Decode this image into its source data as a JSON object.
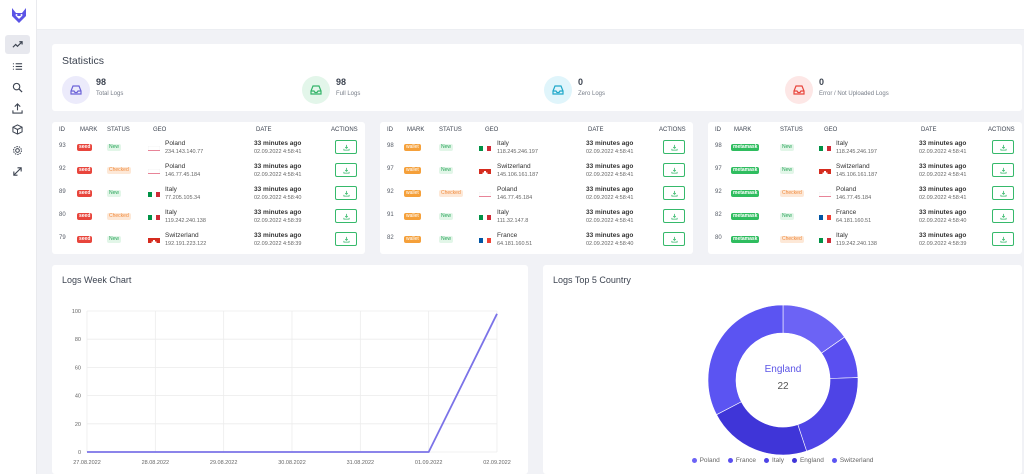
{
  "stats": {
    "title": "Statistics",
    "items": [
      {
        "value": "98",
        "label": "Total Logs",
        "icon": "inbox-icon",
        "color": "#6c63d8",
        "bg": "#ecebfb"
      },
      {
        "value": "98",
        "label": "Full Logs",
        "icon": "inbox-icon",
        "color": "#34b46a",
        "bg": "#e3f6ea"
      },
      {
        "value": "0",
        "label": "Zero Logs",
        "icon": "inbox-icon",
        "color": "#1fa8c9",
        "bg": "#e0f5fb"
      },
      {
        "value": "0",
        "label": "Error / Not Uploaded Logs",
        "icon": "inbox-icon",
        "color": "#e8453c",
        "bg": "#fde7e6"
      }
    ]
  },
  "table_headers": {
    "id": "ID",
    "mark": "MARK",
    "status": "STATUS",
    "geo": "GEO",
    "date": "DATE",
    "actions": "ACTIONS"
  },
  "tables": [
    {
      "rows": [
        {
          "id": "93",
          "mark": "seed",
          "status": "New",
          "country": "Poland",
          "ip": "234.143.140.77",
          "ago": "33 minutes ago",
          "date": "02.09.2022 4:58:41"
        },
        {
          "id": "92",
          "mark": "seed",
          "status": "Checked",
          "country": "Poland",
          "ip": "146.77.45.184",
          "ago": "33 minutes ago",
          "date": "02.09.2022 4:58:41"
        },
        {
          "id": "89",
          "mark": "seed",
          "status": "New",
          "country": "Italy",
          "ip": "77.205.105.34",
          "ago": "33 minutes ago",
          "date": "02.09.2022 4:58:40"
        },
        {
          "id": "80",
          "mark": "seed",
          "status": "Checked",
          "country": "Italy",
          "ip": "119.242.240.138",
          "ago": "33 minutes ago",
          "date": "02.09.2022 4:58:39"
        },
        {
          "id": "79",
          "mark": "seed",
          "status": "New",
          "country": "Switzerland",
          "ip": "192.191.223.122",
          "ago": "33 minutes ago",
          "date": "02.09.2022 4:58:39"
        }
      ]
    },
    {
      "rows": [
        {
          "id": "98",
          "mark": "wallet",
          "status": "New",
          "country": "Italy",
          "ip": "118.245.246.197",
          "ago": "33 minutes ago",
          "date": "02.09.2022 4:58:41"
        },
        {
          "id": "97",
          "mark": "wallet",
          "status": "New",
          "country": "Switzerland",
          "ip": "145.106.161.187",
          "ago": "33 minutes ago",
          "date": "02.09.2022 4:58:41"
        },
        {
          "id": "92",
          "mark": "wallet",
          "status": "Checked",
          "country": "Poland",
          "ip": "146.77.45.184",
          "ago": "33 minutes ago",
          "date": "02.09.2022 4:58:41"
        },
        {
          "id": "91",
          "mark": "wallet",
          "status": "New",
          "country": "Italy",
          "ip": "111.32.147.8",
          "ago": "33 minutes ago",
          "date": "02.09.2022 4:58:41"
        },
        {
          "id": "82",
          "mark": "wallet",
          "status": "New",
          "country": "France",
          "ip": "64.181.160.51",
          "ago": "33 minutes ago",
          "date": "02.09.2022 4:58:40"
        }
      ]
    },
    {
      "rows": [
        {
          "id": "98",
          "mark": "metamask",
          "status": "New",
          "country": "Italy",
          "ip": "118.245.246.197",
          "ago": "33 minutes ago",
          "date": "02.09.2022 4:58:41"
        },
        {
          "id": "97",
          "mark": "metamask",
          "status": "New",
          "country": "Switzerland",
          "ip": "145.106.161.187",
          "ago": "33 minutes ago",
          "date": "02.09.2022 4:58:41"
        },
        {
          "id": "92",
          "mark": "metamask",
          "status": "Checked",
          "country": "Poland",
          "ip": "146.77.45.184",
          "ago": "33 minutes ago",
          "date": "02.09.2022 4:58:41"
        },
        {
          "id": "82",
          "mark": "metamask",
          "status": "New",
          "country": "France",
          "ip": "64.181.160.51",
          "ago": "33 minutes ago",
          "date": "02.09.2022 4:58:40"
        },
        {
          "id": "80",
          "mark": "metamask",
          "status": "Checked",
          "country": "Italy",
          "ip": "119.242.240.138",
          "ago": "33 minutes ago",
          "date": "02.09.2022 4:58:39"
        }
      ]
    }
  ],
  "week_chart": {
    "title": "Logs Week Chart"
  },
  "top5": {
    "title": "Logs Top 5 Country"
  },
  "chart_data": [
    {
      "type": "line",
      "title": "Logs Week Chart",
      "x": [
        "27.08.2022",
        "28.08.2022",
        "29.08.2022",
        "30.08.2022",
        "31.08.2022",
        "01.09.2022",
        "02.09.2022"
      ],
      "series": [
        {
          "values": [
            0,
            0,
            0,
            0,
            0,
            0,
            98
          ]
        }
      ],
      "ylim": [
        0,
        100
      ],
      "yticks": [
        0,
        20,
        40,
        60,
        80,
        100
      ],
      "grid": true,
      "color": "#7b73e8"
    },
    {
      "type": "pie",
      "title": "Logs Top 5 Country",
      "donut": true,
      "labels": [
        "Poland",
        "France",
        "Italy",
        "England",
        "Switzerland"
      ],
      "values": [
        15,
        9,
        20,
        22,
        32
      ],
      "colors": [
        "#6c63f5",
        "#5a4ff0",
        "#4e44e6",
        "#3f35d8",
        "#5b54f2"
      ],
      "center_label": "England",
      "center_value": "22",
      "legend": "bottom"
    }
  ]
}
